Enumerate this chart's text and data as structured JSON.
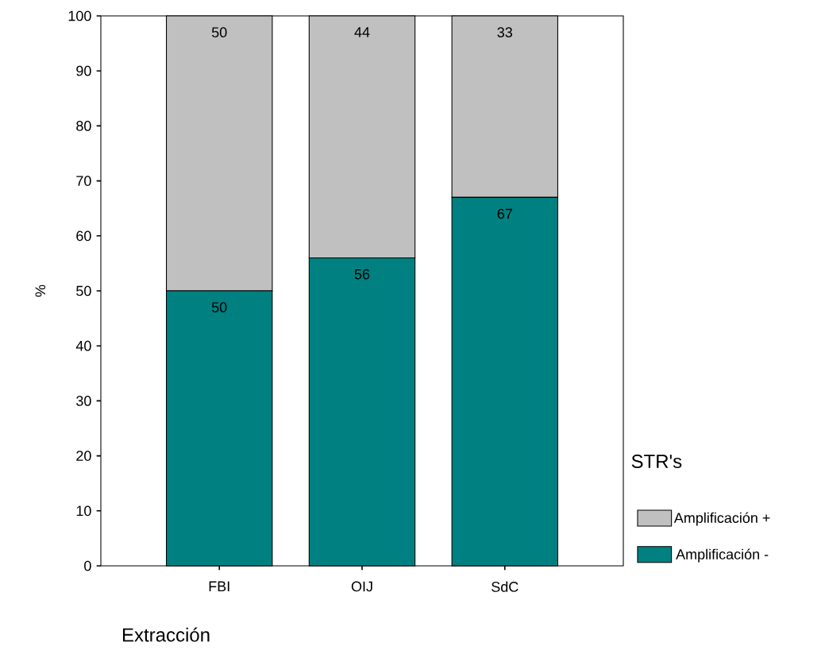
{
  "chart_data": {
    "type": "bar",
    "stacked": true,
    "xlabel": "Extracción",
    "ylabel": "%",
    "legend_title": "STR's",
    "categories": [
      "FBI",
      "OIJ",
      "SdC"
    ],
    "series": [
      {
        "name": "Amplificación -",
        "color": "#008080",
        "values": [
          50,
          56,
          67
        ]
      },
      {
        "name": "Amplificación +",
        "color": "#c0c0c0",
        "values": [
          50,
          44,
          33
        ]
      }
    ],
    "ylim": [
      0,
      100
    ],
    "yticks": [
      0,
      10,
      20,
      30,
      40,
      50,
      60,
      70,
      80,
      90,
      100
    ],
    "data_labels": true,
    "legend": "right",
    "grid": false
  }
}
